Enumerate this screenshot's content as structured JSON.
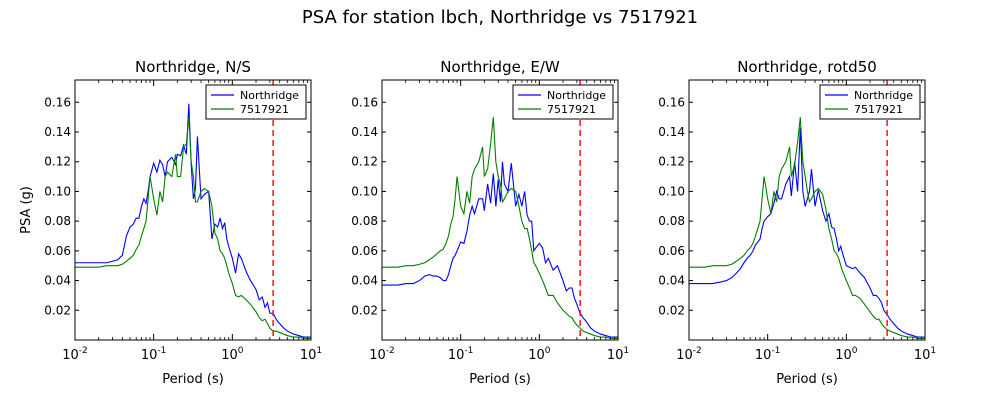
{
  "figure": {
    "suptitle": "PSA for station lbch, Northridge vs 7517921"
  },
  "chart_data": [
    {
      "type": "line",
      "title": "Northridge, N/S",
      "xlabel": "Period (s)",
      "ylabel": "PSA (g)",
      "xscale": "log",
      "xlim": [
        0.01,
        10
      ],
      "ylim": [
        0.0,
        0.175
      ],
      "yticks": [
        0.02,
        0.04,
        0.06,
        0.08,
        0.1,
        0.12,
        0.14,
        0.16
      ],
      "ytick_labels": [
        "0.02",
        "0.04",
        "0.06",
        "0.08",
        "0.10",
        "0.12",
        "0.14",
        "0.16"
      ],
      "xticks": [
        0.01,
        0.1,
        1,
        10
      ],
      "xtick_labels": [
        {
          "base": "10",
          "exp": "-2"
        },
        {
          "base": "10",
          "exp": "-1"
        },
        {
          "base": "10",
          "exp": "0"
        },
        {
          "base": "10",
          "exp": "1"
        }
      ],
      "grid": false,
      "legend": "top-right",
      "vline": {
        "x": 3.3,
        "color": "#ff0000",
        "style": "dashed"
      },
      "series": [
        {
          "name": "Northridge",
          "color": "#0000ff",
          "x": [
            0.01,
            0.013,
            0.016,
            0.02,
            0.025,
            0.03,
            0.035,
            0.04,
            0.045,
            0.05,
            0.055,
            0.06,
            0.065,
            0.07,
            0.075,
            0.08,
            0.085,
            0.09,
            0.1,
            0.11,
            0.12,
            0.13,
            0.14,
            0.15,
            0.17,
            0.19,
            0.2,
            0.22,
            0.24,
            0.26,
            0.28,
            0.3,
            0.32,
            0.34,
            0.36,
            0.4,
            0.44,
            0.5,
            0.55,
            0.6,
            0.65,
            0.7,
            0.75,
            0.8,
            0.85,
            0.9,
            1.0,
            1.1,
            1.2,
            1.3,
            1.5,
            1.7,
            2.0,
            2.2,
            2.4,
            2.6,
            2.8,
            3.0,
            3.3,
            3.6,
            4.0,
            4.5,
            5,
            6,
            7,
            8,
            10
          ],
          "y": [
            0.052,
            0.052,
            0.052,
            0.052,
            0.052,
            0.053,
            0.054,
            0.057,
            0.07,
            0.076,
            0.078,
            0.082,
            0.082,
            0.09,
            0.095,
            0.092,
            0.1,
            0.11,
            0.119,
            0.113,
            0.121,
            0.118,
            0.11,
            0.12,
            0.123,
            0.118,
            0.125,
            0.124,
            0.131,
            0.125,
            0.159,
            0.118,
            0.095,
            0.102,
            0.137,
            0.095,
            0.098,
            0.1,
            0.068,
            0.078,
            0.076,
            0.082,
            0.075,
            0.079,
            0.068,
            0.063,
            0.055,
            0.045,
            0.058,
            0.055,
            0.046,
            0.04,
            0.034,
            0.027,
            0.029,
            0.022,
            0.025,
            0.018,
            0.018,
            0.014,
            0.011,
            0.008,
            0.006,
            0.004,
            0.003,
            0.002,
            0.002
          ]
        },
        {
          "name": "7517921",
          "color": "#008000",
          "x": [
            0.01,
            0.013,
            0.016,
            0.02,
            0.025,
            0.03,
            0.035,
            0.04,
            0.045,
            0.05,
            0.055,
            0.06,
            0.065,
            0.07,
            0.075,
            0.08,
            0.085,
            0.09,
            0.1,
            0.11,
            0.12,
            0.13,
            0.14,
            0.15,
            0.17,
            0.19,
            0.2,
            0.22,
            0.24,
            0.26,
            0.28,
            0.3,
            0.32,
            0.34,
            0.36,
            0.4,
            0.44,
            0.5,
            0.55,
            0.6,
            0.65,
            0.7,
            0.75,
            0.8,
            0.85,
            0.9,
            1.0,
            1.1,
            1.2,
            1.3,
            1.5,
            1.7,
            2.0,
            2.2,
            2.4,
            2.6,
            2.8,
            3.0,
            3.3,
            3.6,
            4.0,
            4.5,
            5,
            6,
            7,
            8,
            10
          ],
          "y": [
            0.049,
            0.049,
            0.049,
            0.049,
            0.05,
            0.05,
            0.05,
            0.051,
            0.053,
            0.055,
            0.057,
            0.061,
            0.064,
            0.07,
            0.075,
            0.08,
            0.095,
            0.11,
            0.095,
            0.084,
            0.1,
            0.093,
            0.11,
            0.113,
            0.11,
            0.125,
            0.11,
            0.11,
            0.13,
            0.132,
            0.15,
            0.12,
            0.11,
            0.093,
            0.093,
            0.1,
            0.102,
            0.1,
            0.09,
            0.072,
            0.068,
            0.06,
            0.058,
            0.055,
            0.05,
            0.045,
            0.038,
            0.03,
            0.029,
            0.03,
            0.027,
            0.024,
            0.019,
            0.015,
            0.013,
            0.014,
            0.011,
            0.008,
            0.006,
            0.006,
            0.005,
            0.004,
            0.003,
            0.002,
            0.002,
            0.001,
            0.001
          ]
        }
      ]
    },
    {
      "type": "line",
      "title": "Northridge, E/W",
      "xlabel": "Period (s)",
      "ylabel": "",
      "xscale": "log",
      "xlim": [
        0.01,
        10
      ],
      "ylim": [
        0.0,
        0.175
      ],
      "yticks": [
        0.02,
        0.04,
        0.06,
        0.08,
        0.1,
        0.12,
        0.14,
        0.16
      ],
      "ytick_labels": [
        "0.02",
        "0.04",
        "0.06",
        "0.08",
        "0.10",
        "0.12",
        "0.14",
        "0.16"
      ],
      "xticks": [
        0.01,
        0.1,
        1,
        10
      ],
      "xtick_labels": [
        {
          "base": "10",
          "exp": "-2"
        },
        {
          "base": "10",
          "exp": "-1"
        },
        {
          "base": "10",
          "exp": "0"
        },
        {
          "base": "10",
          "exp": "1"
        }
      ],
      "grid": false,
      "legend": "top-right",
      "vline": {
        "x": 3.3,
        "color": "#ff0000",
        "style": "dashed"
      },
      "series": [
        {
          "name": "Northridge",
          "color": "#0000ff",
          "x": [
            0.01,
            0.013,
            0.016,
            0.02,
            0.025,
            0.03,
            0.035,
            0.04,
            0.045,
            0.05,
            0.055,
            0.06,
            0.065,
            0.07,
            0.075,
            0.08,
            0.085,
            0.09,
            0.1,
            0.11,
            0.12,
            0.13,
            0.14,
            0.15,
            0.17,
            0.19,
            0.2,
            0.22,
            0.24,
            0.26,
            0.28,
            0.3,
            0.32,
            0.34,
            0.36,
            0.4,
            0.44,
            0.5,
            0.55,
            0.6,
            0.65,
            0.7,
            0.75,
            0.8,
            0.85,
            0.9,
            1.0,
            1.1,
            1.2,
            1.3,
            1.5,
            1.7,
            2.0,
            2.2,
            2.4,
            2.6,
            2.8,
            3.0,
            3.3,
            3.6,
            4.0,
            4.5,
            5,
            6,
            7,
            8,
            10
          ],
          "y": [
            0.037,
            0.037,
            0.037,
            0.038,
            0.038,
            0.04,
            0.043,
            0.044,
            0.043,
            0.043,
            0.042,
            0.04,
            0.04,
            0.044,
            0.05,
            0.055,
            0.057,
            0.06,
            0.066,
            0.065,
            0.073,
            0.084,
            0.09,
            0.085,
            0.095,
            0.095,
            0.087,
            0.105,
            0.092,
            0.112,
            0.09,
            0.108,
            0.093,
            0.12,
            0.105,
            0.1,
            0.119,
            0.09,
            0.098,
            0.09,
            0.1,
            0.084,
            0.08,
            0.08,
            0.06,
            0.062,
            0.065,
            0.062,
            0.052,
            0.055,
            0.047,
            0.05,
            0.04,
            0.033,
            0.035,
            0.035,
            0.028,
            0.024,
            0.018,
            0.015,
            0.012,
            0.008,
            0.006,
            0.004,
            0.003,
            0.002,
            0.002
          ]
        },
        {
          "name": "7517921",
          "color": "#008000",
          "x": [
            0.01,
            0.013,
            0.016,
            0.02,
            0.025,
            0.03,
            0.035,
            0.04,
            0.045,
            0.05,
            0.055,
            0.06,
            0.065,
            0.07,
            0.075,
            0.08,
            0.085,
            0.09,
            0.1,
            0.11,
            0.12,
            0.13,
            0.14,
            0.15,
            0.17,
            0.19,
            0.2,
            0.22,
            0.24,
            0.26,
            0.28,
            0.3,
            0.32,
            0.34,
            0.36,
            0.4,
            0.44,
            0.5,
            0.55,
            0.6,
            0.65,
            0.7,
            0.75,
            0.8,
            0.85,
            0.9,
            1.0,
            1.1,
            1.2,
            1.3,
            1.5,
            1.7,
            2.0,
            2.2,
            2.4,
            2.6,
            2.8,
            3.0,
            3.3,
            3.6,
            4.0,
            4.5,
            5,
            6,
            7,
            8,
            10
          ],
          "y": [
            0.049,
            0.049,
            0.049,
            0.05,
            0.05,
            0.051,
            0.052,
            0.054,
            0.056,
            0.058,
            0.06,
            0.061,
            0.065,
            0.07,
            0.078,
            0.083,
            0.095,
            0.11,
            0.09,
            0.085,
            0.1,
            0.092,
            0.11,
            0.115,
            0.12,
            0.13,
            0.11,
            0.115,
            0.132,
            0.15,
            0.12,
            0.11,
            0.105,
            0.093,
            0.095,
            0.1,
            0.102,
            0.1,
            0.09,
            0.08,
            0.075,
            0.075,
            0.068,
            0.06,
            0.052,
            0.05,
            0.045,
            0.04,
            0.035,
            0.03,
            0.03,
            0.025,
            0.02,
            0.018,
            0.016,
            0.015,
            0.012,
            0.01,
            0.008,
            0.006,
            0.005,
            0.004,
            0.003,
            0.002,
            0.002,
            0.001,
            0.001
          ]
        }
      ]
    },
    {
      "type": "line",
      "title": "Northridge, rotd50",
      "xlabel": "Period (s)",
      "ylabel": "",
      "xscale": "log",
      "xlim": [
        0.01,
        10
      ],
      "ylim": [
        0.0,
        0.175
      ],
      "yticks": [
        0.02,
        0.04,
        0.06,
        0.08,
        0.1,
        0.12,
        0.14,
        0.16
      ],
      "ytick_labels": [
        "0.02",
        "0.04",
        "0.06",
        "0.08",
        "0.10",
        "0.12",
        "0.14",
        "0.16"
      ],
      "xticks": [
        0.01,
        0.1,
        1,
        10
      ],
      "xtick_labels": [
        {
          "base": "10",
          "exp": "-2"
        },
        {
          "base": "10",
          "exp": "-1"
        },
        {
          "base": "10",
          "exp": "0"
        },
        {
          "base": "10",
          "exp": "1"
        }
      ],
      "grid": false,
      "legend": "top-right",
      "vline": {
        "x": 3.3,
        "color": "#ff0000",
        "style": "dashed"
      },
      "series": [
        {
          "name": "Northridge",
          "color": "#0000ff",
          "x": [
            0.01,
            0.013,
            0.016,
            0.02,
            0.025,
            0.03,
            0.035,
            0.04,
            0.045,
            0.05,
            0.055,
            0.06,
            0.065,
            0.07,
            0.075,
            0.08,
            0.085,
            0.09,
            0.1,
            0.11,
            0.12,
            0.13,
            0.14,
            0.15,
            0.17,
            0.19,
            0.2,
            0.22,
            0.24,
            0.26,
            0.28,
            0.3,
            0.32,
            0.34,
            0.36,
            0.4,
            0.44,
            0.5,
            0.55,
            0.6,
            0.65,
            0.7,
            0.75,
            0.8,
            0.85,
            0.9,
            1.0,
            1.1,
            1.2,
            1.3,
            1.5,
            1.7,
            2.0,
            2.2,
            2.4,
            2.6,
            2.8,
            3.0,
            3.3,
            3.6,
            4.0,
            4.5,
            5,
            6,
            7,
            8,
            10
          ],
          "y": [
            0.038,
            0.038,
            0.038,
            0.038,
            0.039,
            0.04,
            0.042,
            0.045,
            0.048,
            0.052,
            0.055,
            0.057,
            0.06,
            0.064,
            0.066,
            0.068,
            0.075,
            0.08,
            0.083,
            0.085,
            0.092,
            0.1,
            0.095,
            0.095,
            0.105,
            0.11,
            0.097,
            0.12,
            0.1,
            0.143,
            0.1,
            0.09,
            0.095,
            0.1,
            0.115,
            0.09,
            0.101,
            0.087,
            0.08,
            0.085,
            0.076,
            0.075,
            0.068,
            0.06,
            0.063,
            0.058,
            0.05,
            0.049,
            0.048,
            0.049,
            0.045,
            0.042,
            0.035,
            0.03,
            0.03,
            0.028,
            0.025,
            0.02,
            0.017,
            0.014,
            0.011,
            0.008,
            0.006,
            0.004,
            0.003,
            0.002,
            0.002
          ]
        },
        {
          "name": "7517921",
          "color": "#008000",
          "x": [
            0.01,
            0.013,
            0.016,
            0.02,
            0.025,
            0.03,
            0.035,
            0.04,
            0.045,
            0.05,
            0.055,
            0.06,
            0.065,
            0.07,
            0.075,
            0.08,
            0.085,
            0.09,
            0.1,
            0.11,
            0.12,
            0.13,
            0.14,
            0.15,
            0.17,
            0.19,
            0.2,
            0.22,
            0.24,
            0.26,
            0.28,
            0.3,
            0.32,
            0.34,
            0.36,
            0.4,
            0.44,
            0.5,
            0.55,
            0.6,
            0.65,
            0.7,
            0.75,
            0.8,
            0.85,
            0.9,
            1.0,
            1.1,
            1.2,
            1.3,
            1.5,
            1.7,
            2.0,
            2.2,
            2.4,
            2.6,
            2.8,
            3.0,
            3.3,
            3.6,
            4.0,
            4.5,
            5,
            6,
            7,
            8,
            10
          ],
          "y": [
            0.049,
            0.049,
            0.049,
            0.05,
            0.05,
            0.05,
            0.051,
            0.053,
            0.055,
            0.057,
            0.06,
            0.062,
            0.065,
            0.07,
            0.075,
            0.08,
            0.095,
            0.11,
            0.095,
            0.085,
            0.1,
            0.093,
            0.11,
            0.115,
            0.12,
            0.13,
            0.11,
            0.118,
            0.133,
            0.15,
            0.12,
            0.11,
            0.1,
            0.093,
            0.095,
            0.1,
            0.102,
            0.098,
            0.088,
            0.075,
            0.068,
            0.06,
            0.058,
            0.055,
            0.05,
            0.046,
            0.04,
            0.035,
            0.03,
            0.03,
            0.028,
            0.024,
            0.019,
            0.016,
            0.014,
            0.014,
            0.011,
            0.009,
            0.007,
            0.006,
            0.005,
            0.004,
            0.003,
            0.002,
            0.002,
            0.001,
            0.001
          ]
        }
      ]
    }
  ]
}
